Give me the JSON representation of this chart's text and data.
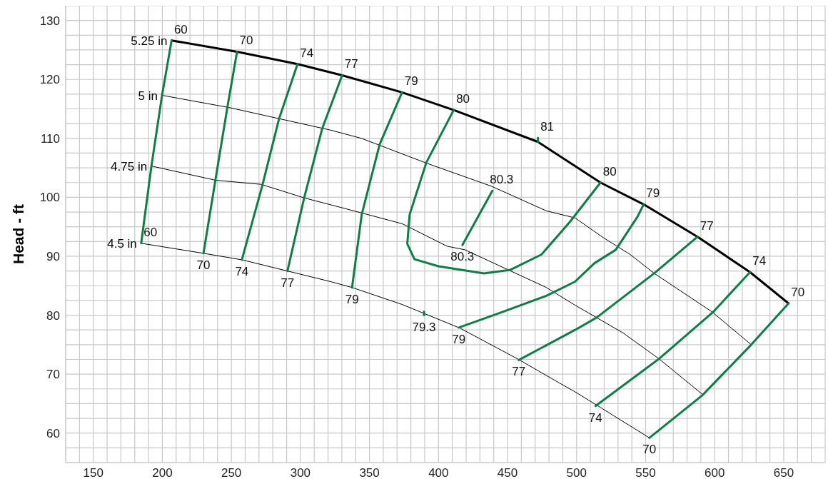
{
  "chart_data": {
    "type": "line",
    "ylabel": "Head - ft",
    "marker": "none",
    "line_style": "solid",
    "grid": true,
    "xlim": [
      130,
      680
    ],
    "xticks": [
      {
        "value": 130,
        "label": null
      },
      {
        "value": 140,
        "label": null
      },
      150,
      {
        "value": 160,
        "label": null
      },
      {
        "value": 170,
        "label": null
      },
      {
        "value": 180,
        "label": null
      },
      {
        "value": 190,
        "label": null
      },
      200,
      {
        "value": 210,
        "label": null
      },
      {
        "value": 220,
        "label": null
      },
      {
        "value": 230,
        "label": null
      },
      {
        "value": 240,
        "label": null
      },
      250,
      {
        "value": 260,
        "label": null
      },
      {
        "value": 270,
        "label": null
      },
      {
        "value": 280,
        "label": null
      },
      {
        "value": 290,
        "label": null
      },
      300,
      {
        "value": 310,
        "label": null
      },
      {
        "value": 320,
        "label": null
      },
      {
        "value": 330,
        "label": null
      },
      {
        "value": 340,
        "label": null
      },
      350,
      {
        "value": 360,
        "label": null
      },
      {
        "value": 370,
        "label": null
      },
      {
        "value": 380,
        "label": null
      },
      {
        "value": 390,
        "label": null
      },
      400,
      {
        "value": 410,
        "label": null
      },
      {
        "value": 420,
        "label": null
      },
      {
        "value": 430,
        "label": null
      },
      {
        "value": 440,
        "label": null
      },
      450,
      {
        "value": 460,
        "label": null
      },
      {
        "value": 470,
        "label": null
      },
      {
        "value": 480,
        "label": null
      },
      {
        "value": 490,
        "label": null
      },
      500,
      {
        "value": 510,
        "label": null
      },
      {
        "value": 520,
        "label": null
      },
      {
        "value": 530,
        "label": null
      },
      {
        "value": 540,
        "label": null
      },
      550,
      {
        "value": 560,
        "label": null
      },
      {
        "value": 570,
        "label": null
      },
      {
        "value": 580,
        "label": null
      },
      {
        "value": 590,
        "label": null
      },
      600,
      {
        "value": 610,
        "label": null
      },
      {
        "value": 620,
        "label": null
      },
      {
        "value": 630,
        "label": null
      },
      {
        "value": 640,
        "label": null
      },
      650,
      {
        "value": 660,
        "label": null
      },
      {
        "value": 670,
        "label": null
      },
      {
        "value": 680,
        "label": null
      }
    ],
    "ylim": [
      55,
      132.5
    ],
    "yticks": [
      {
        "value": 55,
        "label": null
      },
      {
        "value": 57.5,
        "label": null
      },
      60,
      {
        "value": 62.5,
        "label": null
      },
      {
        "value": 65,
        "label": null
      },
      {
        "value": 67.5,
        "label": null
      },
      70,
      {
        "value": 72.5,
        "label": null
      },
      {
        "value": 75,
        "label": null
      },
      {
        "value": 77.5,
        "label": null
      },
      80,
      {
        "value": 82.5,
        "label": null
      },
      {
        "value": 85,
        "label": null
      },
      {
        "value": 87.5,
        "label": null
      },
      90,
      {
        "value": 92.5,
        "label": null
      },
      {
        "value": 95,
        "label": null
      },
      {
        "value": 97.5,
        "label": null
      },
      100,
      {
        "value": 102.5,
        "label": null
      },
      {
        "value": 105,
        "label": null
      },
      {
        "value": 107.5,
        "label": null
      },
      110,
      {
        "value": 112.5,
        "label": null
      },
      {
        "value": 115,
        "label": null
      },
      {
        "value": 117.5,
        "label": null
      },
      120,
      {
        "value": 122.5,
        "label": null
      },
      {
        "value": 125,
        "label": null
      },
      {
        "value": 127.5,
        "label": null
      },
      130,
      {
        "value": 132.5,
        "label": null
      }
    ],
    "series": [
      {
        "name": "5.25 in",
        "color": "#000000",
        "x": [
          206.7,
          254.1,
          297.9,
          330.2,
          373.6,
          411,
          472,
          517.3,
          548.6,
          587.6,
          625.6,
          653.5
        ],
        "values": [
          126.6,
          124.7,
          122.6,
          120.7,
          117.8,
          114.8,
          109.4,
          102.5,
          98.8,
          93.3,
          87.3,
          82
        ]
      },
      {
        "name": "5 in",
        "color": "#000000",
        "x": [
          199.8,
          248.9,
          321.8,
          344.2,
          391.2,
          438.1,
          478.1,
          498.9,
          519.7,
          538.8,
          556.2,
          597.9,
          626.5
        ],
        "values": [
          117.3,
          115.2,
          111.4,
          110,
          105.8,
          101.9,
          97.7,
          96.5,
          93.1,
          90.3,
          87.1,
          80.6,
          75
        ]
      },
      {
        "name": "4.75 in",
        "color": "#000000",
        "x": [
          192.1,
          238.5,
          271.5,
          302.7,
          332.2,
          373.9,
          406.2,
          419.1,
          478.1,
          498.9,
          533.6,
          559.7,
          591
        ],
        "values": [
          105.3,
          102.9,
          102.2,
          99.9,
          98.1,
          95.5,
          91.7,
          91.1,
          84.7,
          81.7,
          77,
          72.6,
          66.6
        ]
      },
      {
        "name": "4.5 in",
        "color": "#000000",
        "x": [
          184.7,
          229.8,
          257.6,
          290.6,
          321.8,
          337.4,
          373.9,
          415.6,
          457.2,
          486.8,
          498.9,
          512.8,
          552.7
        ],
        "values": [
          92.2,
          90.5,
          89.4,
          87.5,
          85.7,
          84.7,
          81.8,
          77.8,
          72.6,
          68.6,
          67,
          65,
          59.2
        ]
      },
      {
        "color": "#0b8043",
        "x": [
          184.7,
          192.1,
          199.8,
          206.7
        ],
        "values": [
          92.2,
          105.3,
          117.3,
          126.6
        ]
      },
      {
        "color": "#0b8043",
        "x": [
          229.8,
          238.5,
          247.2,
          254.1
        ],
        "values": [
          90.5,
          103,
          115.4,
          124.7
        ]
      },
      {
        "color": "#0b8043",
        "x": [
          257.6,
          272.3,
          284.5,
          297.9
        ],
        "values": [
          89.4,
          101.9,
          113.3,
          122.6
        ]
      },
      {
        "color": "#0b8043",
        "x": [
          290.6,
          302.7,
          315.7,
          330.2
        ],
        "values": [
          87.5,
          99.9,
          111.6,
          120.7
        ]
      },
      {
        "color": "#0b8043",
        "x": [
          337.4,
          344.4,
          357.4,
          373.6
        ],
        "values": [
          84.7,
          97.1,
          109,
          117.8
        ]
      },
      {
        "color": "#0b8043",
        "x": [
          411,
          391.2,
          379.1,
          377.4,
          382.6,
          400,
          432.9,
          452.2,
          474.6,
          495.4,
          517.3
        ],
        "values": [
          114.8,
          105.9,
          97.1,
          92.1,
          89.5,
          88.3,
          87.1,
          87.7,
          90.3,
          95.9,
          102.5
        ]
      },
      {
        "color": "#0b8043",
        "x": [
          417.3,
          439
        ],
        "values": [
          91.9,
          101.1
        ]
      },
      {
        "color": "#0b8043",
        "x": [
          472,
          472
        ],
        "values": [
          109.4,
          110.1
        ]
      },
      {
        "color": "#0b8043",
        "x": [
          389.5,
          389.5
        ],
        "values": [
          80,
          80.6
        ]
      },
      {
        "color": "#0b8043",
        "x": [
          414.7,
          443.3,
          478.1,
          498.9,
          512.8,
          528.4,
          544.1,
          548.6
        ],
        "values": [
          77.9,
          80.3,
          83.3,
          85.7,
          88.8,
          91.1,
          96.7,
          98.8
        ]
      },
      {
        "color": "#0b8043",
        "x": [
          458.1,
          498.9,
          514.5,
          556.2,
          587.6
        ],
        "values": [
          72.4,
          77.5,
          79.6,
          87.1,
          93.3
        ]
      },
      {
        "color": "#0b8043",
        "x": [
          513.7,
          559.7,
          598.7,
          625.6
        ],
        "values": [
          64.6,
          72.6,
          80.5,
          87.3
        ]
      },
      {
        "color": "#0b8043",
        "x": [
          552.7,
          591,
          626.5,
          653.5
        ],
        "values": [
          59.2,
          66.4,
          75,
          82
        ]
      }
    ],
    "annotations": [
      {
        "text": "60",
        "x": 206.7,
        "y": 126.6
      },
      {
        "text": "70",
        "x": 254.1,
        "y": 124.7
      },
      {
        "text": "74",
        "x": 297.9,
        "y": 122.6
      },
      {
        "text": "77",
        "x": 330.2,
        "y": 120.7
      },
      {
        "text": "79",
        "x": 373.6,
        "y": 117.8
      },
      {
        "text": "80",
        "x": 411,
        "y": 114.8
      },
      {
        "text": "81",
        "x": 472,
        "y": 110.1
      },
      {
        "text": "80",
        "x": 517.3,
        "y": 102.5
      },
      {
        "text": "79",
        "x": 548.6,
        "y": 98.8
      },
      {
        "text": "77",
        "x": 587.6,
        "y": 93.3
      },
      {
        "text": "74",
        "x": 625.6,
        "y": 87.3
      },
      {
        "text": "70",
        "x": 653.5,
        "y": 82
      },
      {
        "text": "60",
        "x": 184.7,
        "y": 92.2
      },
      {
        "text": "70",
        "x": 229.8,
        "y": 90.5
      },
      {
        "text": "74",
        "x": 257.6,
        "y": 89.4
      },
      {
        "text": "77",
        "x": 290.6,
        "y": 87.5
      },
      {
        "text": "79",
        "x": 337.4,
        "y": 84.7
      },
      {
        "text": "79.3",
        "x": 389.5,
        "y": 80
      },
      {
        "text": "79",
        "x": 414.7,
        "y": 77.9
      },
      {
        "text": "77",
        "x": 458.1,
        "y": 72.4
      },
      {
        "text": "74",
        "x": 513.7,
        "y": 64.6
      },
      {
        "text": "70",
        "x": 552.7,
        "y": 59.2
      },
      {
        "text": "80.3",
        "x": 417.3,
        "y": 91.9
      },
      {
        "text": "80.3",
        "x": 439,
        "y": 101.1
      }
    ]
  }
}
